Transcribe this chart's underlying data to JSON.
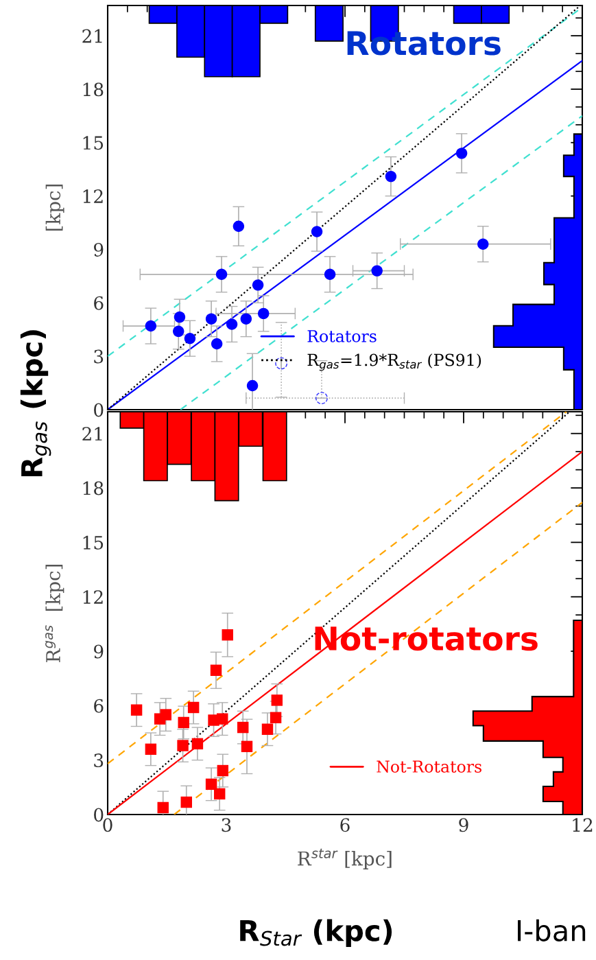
{
  "chart_data": [
    {
      "type": "scatter",
      "ylabel": "[kpc]",
      "xlim": [
        0,
        12
      ],
      "ylim": [
        0,
        22.7
      ],
      "tick_labels": "y",
      "legend": "bottom right",
      "xticks": [
        0,
        {
          "value": 0.5,
          "label": null
        },
        {
          "value": 1,
          "label": null
        },
        {
          "value": 1.5,
          "label": null
        },
        {
          "value": 2,
          "label": null
        },
        {
          "value": 2.5,
          "label": null
        },
        3,
        {
          "value": 3.5,
          "label": null
        },
        {
          "value": 4,
          "label": null
        },
        {
          "value": 4.5,
          "label": null
        },
        {
          "value": 5,
          "label": null
        },
        {
          "value": 5.5,
          "label": null
        },
        6,
        {
          "value": 6.5,
          "label": null
        },
        {
          "value": 7,
          "label": null
        },
        {
          "value": 7.5,
          "label": null
        },
        {
          "value": 8,
          "label": null
        },
        {
          "value": 8.5,
          "label": null
        },
        9,
        {
          "value": 9.5,
          "label": null
        },
        {
          "value": 10,
          "label": null
        },
        {
          "value": 10.5,
          "label": null
        },
        {
          "value": 11,
          "label": null
        },
        {
          "value": 11.5,
          "label": null
        },
        12
      ],
      "yticks": [
        0,
        {
          "value": 1,
          "label": null
        },
        {
          "value": 2,
          "label": null
        },
        3,
        {
          "value": 4,
          "label": null
        },
        {
          "value": 5,
          "label": null
        },
        6,
        {
          "value": 7,
          "label": null
        },
        {
          "value": 8,
          "label": null
        },
        9,
        {
          "value": 10,
          "label": null
        },
        {
          "value": 11,
          "label": null
        },
        12,
        {
          "value": 13,
          "label": null
        },
        {
          "value": 14,
          "label": null
        },
        15,
        {
          "value": 16,
          "label": null
        },
        {
          "value": 17,
          "label": null
        },
        18,
        {
          "value": 19,
          "label": null
        },
        {
          "value": 20,
          "label": null
        },
        21,
        {
          "value": 22,
          "label": null
        }
      ],
      "annotations": [
        "Rotators",
        "R$_{gas}$ (kpc)"
      ],
      "series": [
        {
          "type": "bar",
          "color": "#0000ff",
          "x": [
            1.4,
            2.1,
            2.8,
            3.5,
            4.2,
            5.6,
            7.0,
            9.1,
            9.8
          ],
          "base": [
            21.7,
            19.8,
            18.7,
            18.7,
            21.7,
            20.7,
            20.7,
            21.7,
            21.7
          ],
          "values": [
            1.0,
            2.9,
            4.0,
            4.0,
            1.0,
            2.0,
            2.0,
            1.0,
            1.0
          ]
        },
        {
          "type": "area",
          "color": "#0000ff",
          "x": [
            12,
            11.79,
            11.79,
            11.53,
            11.53,
            9.76,
            9.76,
            10.25,
            10.25,
            11.29,
            11.29,
            11.03,
            11.03,
            11.29,
            11.29,
            11.79,
            11.79,
            11.53,
            11.53,
            11.79,
            11.79,
            12
          ],
          "values": [
            0,
            0,
            2.24,
            2.24,
            3.51,
            3.51,
            4.71,
            4.71,
            5.91,
            5.91,
            7.03,
            7.03,
            8.26,
            8.26,
            10.77,
            10.77,
            13.1,
            13.1,
            14.29,
            14.29,
            15.48,
            15.48
          ]
        },
        {
          "type": "line",
          "color": "#40e0d0",
          "line_style": "dashed",
          "x": [
            0,
            12
          ],
          "values": [
            3.0,
            22.6
          ]
        },
        {
          "type": "line",
          "color": "#40e0d0",
          "line_style": "dashed",
          "x": [
            1.84,
            12
          ],
          "values": [
            0,
            16.5
          ]
        },
        {
          "type": "line",
          "name": "Rotators",
          "color": "#0000ff",
          "line_style": "solid",
          "x": [
            0,
            12
          ],
          "values": [
            0,
            19.6
          ]
        },
        {
          "type": "line",
          "name": "R$_{gas}$=1.9*R$_{star}$ (PS91)",
          "color": "#000000",
          "line_style": "dotted",
          "x": [
            0,
            11.95
          ],
          "values": [
            0,
            22.7
          ]
        },
        {
          "color": "#0000ff",
          "marker": "circle",
          "line_style": "solid",
          "x": [
            1.09,
            1.82,
            1.79,
            2.08,
            2.62,
            2.76,
            2.88,
            3.14,
            3.31,
            3.5,
            3.8,
            3.94,
            3.66,
            5.29,
            5.62,
            6.81,
            7.16,
            8.95,
            9.49
          ],
          "values": [
            4.7,
            5.2,
            4.4,
            4.0,
            5.1,
            3.7,
            7.6,
            4.8,
            10.3,
            5.1,
            7.0,
            5.4,
            1.35,
            10.0,
            7.6,
            7.8,
            13.1,
            14.4,
            9.3
          ],
          "errors": [
            1.0,
            1.0,
            1.0,
            1.0,
            1.0,
            1.0,
            1.0,
            1.0,
            1.1,
            1.0,
            1.0,
            1.0,
            1.8,
            1.1,
            1.0,
            1.0,
            1.1,
            1.1,
            1.0
          ],
          "xerrors": [
            [
              0.39,
              1.69
            ],
            null,
            null,
            null,
            null,
            null,
            null,
            null,
            null,
            null,
            null,
            [
              2.74,
              4.74
            ],
            null,
            null,
            [
              0.82,
              7.72
            ],
            [
              6.2,
              7.5
            ],
            null,
            null,
            [
              7.4,
              11.2
            ]
          ]
        },
        {
          "color": "#3333ff",
          "marker": "circle",
          "line_style": "dotted",
          "x": [
            4.39,
            5.41
          ],
          "values": [
            2.6,
            0.65
          ],
          "errors": [
            [
              0.7,
              4.9
            ],
            [
              0.65,
              2.75
            ]
          ],
          "xerrors": [
            null,
            [
              3.5,
              7.5
            ]
          ]
        }
      ]
    },
    {
      "type": "scatter",
      "ylabel": "R$^{gas}$  [kpc]",
      "xlabel": "R$^{star}$ [kpc]",
      "xlim": [
        0,
        12
      ],
      "ylim": [
        0,
        22.2
      ],
      "legend": "bottom right",
      "xticks": [
        0,
        {
          "value": 0.5,
          "label": null
        },
        {
          "value": 1,
          "label": null
        },
        {
          "value": 1.5,
          "label": null
        },
        {
          "value": 2,
          "label": null
        },
        {
          "value": 2.5,
          "label": null
        },
        3,
        {
          "value": 3.5,
          "label": null
        },
        {
          "value": 4,
          "label": null
        },
        {
          "value": 4.5,
          "label": null
        },
        {
          "value": 5,
          "label": null
        },
        {
          "value": 5.5,
          "label": null
        },
        6,
        {
          "value": 6.5,
          "label": null
        },
        {
          "value": 7,
          "label": null
        },
        {
          "value": 7.5,
          "label": null
        },
        {
          "value": 8,
          "label": null
        },
        {
          "value": 8.5,
          "label": null
        },
        9,
        {
          "value": 9.5,
          "label": null
        },
        {
          "value": 10,
          "label": null
        },
        {
          "value": 10.5,
          "label": null
        },
        {
          "value": 11,
          "label": null
        },
        {
          "value": 11.5,
          "label": null
        },
        12
      ],
      "yticks": [
        0,
        {
          "value": 1,
          "label": null
        },
        {
          "value": 2,
          "label": null
        },
        3,
        {
          "value": 4,
          "label": null
        },
        {
          "value": 5,
          "label": null
        },
        6,
        {
          "value": 7,
          "label": null
        },
        {
          "value": 8,
          "label": null
        },
        9,
        {
          "value": 10,
          "label": null
        },
        {
          "value": 11,
          "label": null
        },
        12,
        {
          "value": 13,
          "label": null
        },
        {
          "value": 14,
          "label": null
        },
        15,
        {
          "value": 16,
          "label": null
        },
        {
          "value": 17,
          "label": null
        },
        18,
        {
          "value": 19,
          "label": null
        },
        {
          "value": 20,
          "label": null
        },
        21,
        {
          "value": 22,
          "label": null
        }
      ],
      "annotations": [
        "Not-rotators",
        "R$_{Star}$ (kpc)",
        "I-ban"
      ],
      "series": [
        {
          "type": "bar",
          "color": "#ff0000",
          "x": [
            0.615,
            1.21,
            1.81,
            2.415,
            3.01,
            3.615,
            4.225
          ],
          "base": [
            21.3,
            18.4,
            19.3,
            18.4,
            17.3,
            20.3,
            18.4
          ],
          "values": [
            0.9,
            3.8,
            2.9,
            3.8,
            4.9,
            1.9,
            3.8
          ]
        },
        {
          "type": "area",
          "color": "#ff0000",
          "x": [
            12,
            11.51,
            11.51,
            11.01,
            11.01,
            11.27,
            11.27,
            11.51,
            11.51,
            11.01,
            11.01,
            9.5,
            9.5,
            9.24,
            9.24,
            10.73,
            10.73,
            11.78,
            11.78,
            12
          ],
          "values": [
            0,
            0,
            0.72,
            0.72,
            1.55,
            1.55,
            2.35,
            2.35,
            3.15,
            3.15,
            4.05,
            4.05,
            4.9,
            4.9,
            5.7,
            5.7,
            6.5,
            6.5,
            10.7,
            10.7
          ]
        },
        {
          "type": "line",
          "color": "#ffa500",
          "line_style": "dashed",
          "x": [
            0,
            11.6
          ],
          "values": [
            2.8,
            22.2
          ]
        },
        {
          "type": "line",
          "color": "#ffa500",
          "line_style": "dashed",
          "x": [
            1.68,
            12
          ],
          "values": [
            0,
            17.2
          ]
        },
        {
          "type": "line",
          "color": "#000000",
          "line_style": "dotted",
          "x": [
            0,
            11.68
          ],
          "values": [
            0,
            22.2
          ]
        },
        {
          "type": "line",
          "name": "Not-Rotators",
          "color": "#ff0000",
          "line_style": "solid",
          "x": [
            0,
            12
          ],
          "values": [
            0,
            20.0
          ]
        },
        {
          "color": "#ff0000",
          "marker": "square",
          "line_style": "solid",
          "x": [
            0.73,
            1.09,
            1.32,
            1.47,
            1.4,
            1.92,
            1.9,
            2.17,
            2.27,
            1.99,
            2.74,
            3.03,
            2.68,
            2.9,
            2.62,
            2.83,
            2.91,
            3.42,
            3.52,
            4.04,
            4.25,
            4.28
          ],
          "values": [
            5.76,
            3.6,
            5.27,
            5.5,
            0.38,
            5.07,
            3.8,
            5.9,
            3.9,
            0.68,
            7.95,
            9.9,
            5.2,
            5.27,
            1.67,
            1.14,
            2.42,
            4.8,
            3.75,
            4.7,
            5.34,
            6.3
          ],
          "errors": [
            0.9,
            0.9,
            0.9,
            0.9,
            0.9,
            0.9,
            0.9,
            0.9,
            0.9,
            0.9,
            1.0,
            1.2,
            0.9,
            0.9,
            0.9,
            0.9,
            0.9,
            0.9,
            1.5,
            0.9,
            0.9,
            0.9
          ]
        }
      ]
    }
  ]
}
